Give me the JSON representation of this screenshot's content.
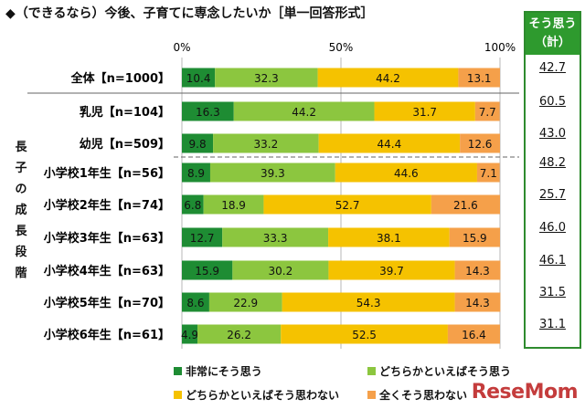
{
  "title": "◆（できるなら）今後、子育てに専念したいか［単一回答形式］",
  "group_label": [
    "長",
    "子",
    "の",
    "成",
    "長",
    "段",
    "階"
  ],
  "summary_header": [
    "そう思う",
    "（計）"
  ],
  "colors": {
    "c1": "#1e8c33",
    "c2": "#8cc63f",
    "c3": "#f5c200",
    "c4": "#f5a04a",
    "box": "#2e9a2e"
  },
  "watermark": "ReseMom",
  "chart_data": {
    "type": "bar",
    "orientation": "horizontal",
    "stacked": true,
    "xlim": [
      0,
      100
    ],
    "x_ticks": [
      "0%",
      "50%",
      "100%"
    ],
    "categories": [
      "全体【n=1000】",
      "乳児【n=104】",
      "幼児【n=509】",
      "小学校1年生【n=56】",
      "小学校2年生【n=74】",
      "小学校3年生【n=63】",
      "小学校4年生【n=63】",
      "小学校5年生【n=70】",
      "小学校6年生【n=61】"
    ],
    "series": [
      {
        "name": "非常にそう思う",
        "values": [
          10.4,
          16.3,
          9.8,
          8.9,
          6.8,
          12.7,
          15.9,
          8.6,
          4.9
        ]
      },
      {
        "name": "どちらかといえばそう思う",
        "values": [
          32.3,
          44.2,
          33.2,
          39.3,
          18.9,
          33.3,
          30.2,
          22.9,
          26.2
        ]
      },
      {
        "name": "どちらかといえばそう思わない",
        "values": [
          44.2,
          31.7,
          44.4,
          44.6,
          52.7,
          38.1,
          39.7,
          54.3,
          52.5
        ]
      },
      {
        "name": "全くそう思わない",
        "values": [
          13.1,
          7.7,
          12.6,
          7.1,
          21.6,
          15.9,
          14.3,
          14.3,
          16.4
        ]
      }
    ],
    "summary": [
      "42.7",
      "60.5",
      "43.0",
      "48.2",
      "25.7",
      "46.0",
      "46.1",
      "31.5",
      "31.1"
    ],
    "legend_position": "bottom"
  }
}
